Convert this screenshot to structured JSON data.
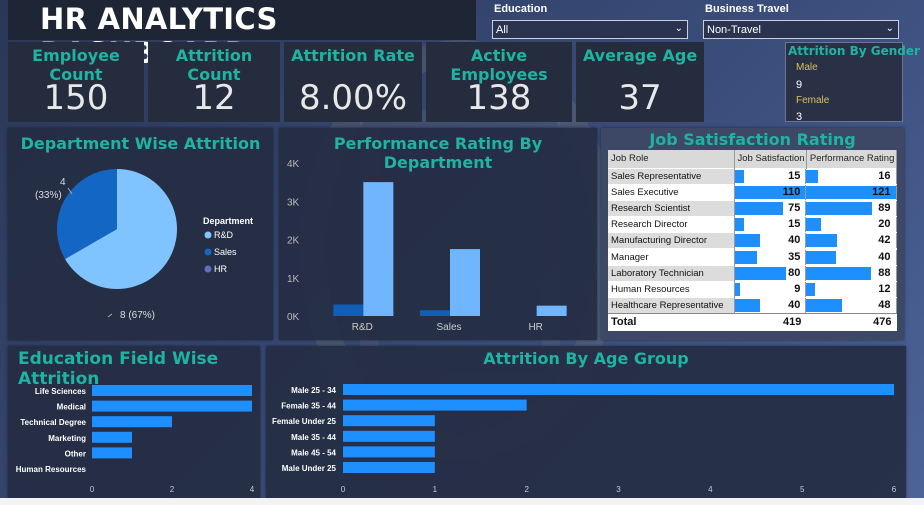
{
  "dashboard": {
    "title": "HR ANALYTICS DASHBOARD"
  },
  "filters": {
    "education": {
      "label": "Education",
      "value": "All"
    },
    "business_travel": {
      "label": "Business Travel",
      "value": "Non-Travel"
    }
  },
  "kpis": [
    {
      "label": "Employee Count",
      "value": "150"
    },
    {
      "label": "Attrition Count",
      "value": "12"
    },
    {
      "label": "Attrition Rate",
      "value": "8.00%"
    },
    {
      "label": "Active Employees",
      "value": "138"
    },
    {
      "label": "Average Age",
      "value": "37"
    }
  ],
  "gender": {
    "title": "Attrition By Gender",
    "items": [
      {
        "label": "Male",
        "value": "9"
      },
      {
        "label": "Female",
        "value": "3"
      }
    ]
  },
  "colors": {
    "accent": "#1fb3a1",
    "bar": "#1e8fff",
    "light_bar": "#6fb6ff",
    "dark_bar": "#0f5fb8",
    "pie_light": "#7fc4ff",
    "pie_dark": "#1466c4",
    "pie_hr": "#5f6fc0"
  },
  "chart_data": [
    {
      "type": "pie",
      "title": "Department Wise Attrition",
      "legend_title": "Department",
      "legend_position": "right",
      "categories": [
        "R&D",
        "Sales",
        "HR"
      ],
      "values": [
        8,
        4,
        0
      ],
      "labels": [
        "8 (67%)",
        "4",
        "(33%)"
      ]
    },
    {
      "type": "bar",
      "title": "Performance Rating By Department",
      "categories": [
        "R&D",
        "Sales",
        "HR"
      ],
      "series": [
        {
          "values": [
            300,
            150,
            0
          ]
        },
        {
          "values": [
            3500,
            1750,
            270
          ]
        }
      ],
      "ylim": [
        0,
        4000
      ],
      "yticks": [
        "0K",
        "1K",
        "2K",
        "3K",
        "4K"
      ]
    },
    {
      "type": "table",
      "title": "Job Satisfaction Rating",
      "columns": [
        "Job Role",
        "Job Satisfaction",
        "Performance Rating"
      ],
      "rows": [
        {
          "role": "Sales Representative",
          "js": 15,
          "pr": 16
        },
        {
          "role": "Sales Executive",
          "js": 110,
          "pr": 121
        },
        {
          "role": "Research Scientist",
          "js": 75,
          "pr": 89
        },
        {
          "role": "Research Director",
          "js": 15,
          "pr": 20
        },
        {
          "role": "Manufacturing Director",
          "js": 40,
          "pr": 42
        },
        {
          "role": "Manager",
          "js": 35,
          "pr": 40
        },
        {
          "role": "Laboratory Technician",
          "js": 80,
          "pr": 88
        },
        {
          "role": "Human Resources",
          "js": 9,
          "pr": 12
        },
        {
          "role": "Healthcare Representative",
          "js": 40,
          "pr": 48
        }
      ],
      "total": {
        "label": "Total",
        "js": "419",
        "pr": "476"
      }
    },
    {
      "type": "bar",
      "title": "Education Field Wise Attrition",
      "orientation": "horizontal",
      "categories": [
        "Life Sciences",
        "Medical",
        "Technical Degree",
        "Marketing",
        "Other",
        "Human Resources"
      ],
      "values": [
        4,
        4,
        2,
        1,
        1,
        0
      ],
      "xlim": [
        0,
        4
      ],
      "xticks": [
        "0",
        "2",
        "4"
      ]
    },
    {
      "type": "bar",
      "title": "Attrition By Age Group",
      "orientation": "horizontal",
      "categories": [
        "Male 25 - 34",
        "Female 35 - 44",
        "Female Under 25",
        "Male 35 - 44",
        "Male 45 - 54",
        "Male Under 25"
      ],
      "values": [
        6,
        2,
        1,
        1,
        1,
        1
      ],
      "xlim": [
        0,
        6
      ],
      "xticks": [
        "0",
        "1",
        "2",
        "3",
        "4",
        "5",
        "6"
      ]
    }
  ]
}
